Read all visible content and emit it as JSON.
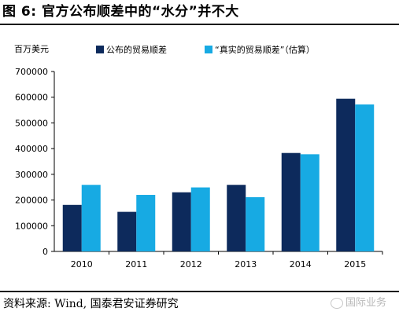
{
  "header": {
    "title": "图 6: 官方公布顺差中的“水分”并不大"
  },
  "footer": {
    "source": "资料来源: Wind, 国泰君安证券研究",
    "watermark": "国际业务"
  },
  "chart_data": {
    "type": "bar",
    "unit_label": "百万美元",
    "categories": [
      "2010",
      "2011",
      "2012",
      "2013",
      "2014",
      "2015"
    ],
    "series": [
      {
        "name": "公布的贸易顺差",
        "color": "#0d2a5c",
        "values": [
          181000,
          154000,
          230000,
          259000,
          383000,
          594000
        ]
      },
      {
        "name": "“真实的贸易顺差”（估算）",
        "color": "#17aae3",
        "values": [
          259000,
          220000,
          249000,
          211000,
          378000,
          572000
        ]
      }
    ],
    "ylim": [
      0,
      700000
    ],
    "yticks": [
      0,
      100000,
      200000,
      300000,
      400000,
      500000,
      600000,
      700000
    ],
    "legend_position": "top",
    "grid": false
  }
}
